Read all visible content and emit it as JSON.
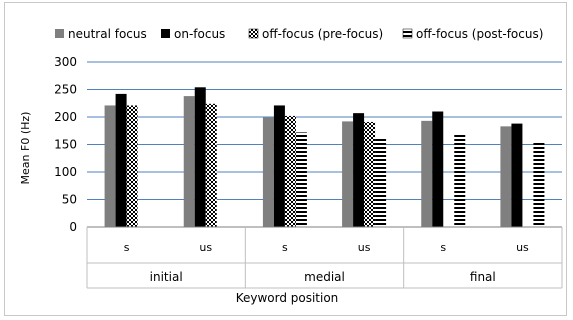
{
  "chart_data": {
    "type": "bar",
    "ylabel": "Mean F0 (Hz)",
    "xlabel": "Keyword position",
    "ylim": [
      0,
      300
    ],
    "yticks": [
      0,
      50,
      100,
      150,
      200,
      250,
      300
    ],
    "grid": true,
    "legend_position": "top",
    "categories": [
      "s",
      "us",
      "s",
      "us",
      "s",
      "us"
    ],
    "groups": [
      {
        "label": "initial",
        "span": 2
      },
      {
        "label": "medial",
        "span": 2
      },
      {
        "label": "final",
        "span": 2
      }
    ],
    "series": [
      {
        "name": "neutral focus",
        "pattern": "gray",
        "values": [
          221,
          238,
          199,
          192,
          193,
          183
        ]
      },
      {
        "name": "on-focus",
        "pattern": "black",
        "values": [
          242,
          254,
          221,
          207,
          210,
          188
        ]
      },
      {
        "name": "off-focus (pre-focus)",
        "pattern": "checker",
        "values": [
          221,
          224,
          202,
          191,
          null,
          null
        ]
      },
      {
        "name": "off-focus (post-focus)",
        "pattern": "hstripe",
        "values": [
          null,
          null,
          172,
          162,
          168,
          155
        ]
      }
    ],
    "colors": {
      "gray": "#7f7f7f",
      "black": "#000000",
      "grid": "#4f81bd"
    }
  }
}
